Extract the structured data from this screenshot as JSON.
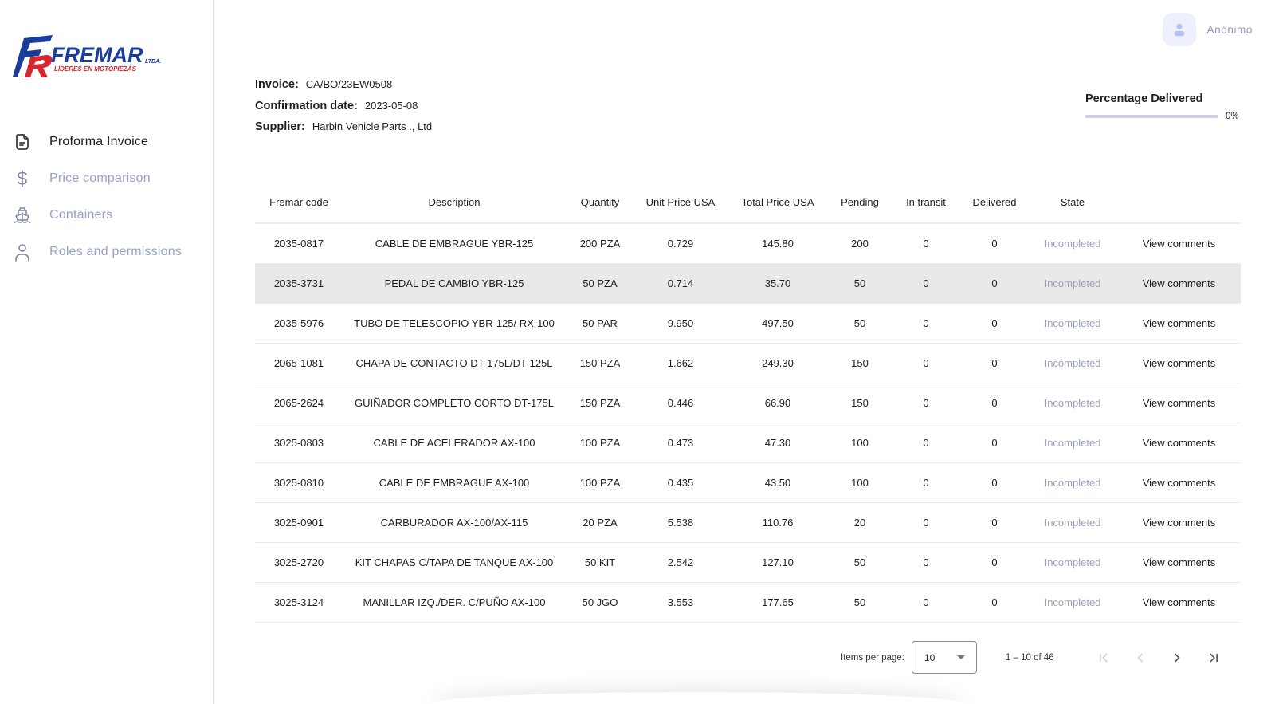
{
  "brand": {
    "name": "FREMAR",
    "suffix": "LTDA.",
    "tagline": "LÍDERES EN MOTOPIEZAS",
    "colors": {
      "blue": "#1a3d9c",
      "red": "#d8262e"
    }
  },
  "sidebar": {
    "items": [
      {
        "label": "Proforma Invoice",
        "icon": "document-icon",
        "active": true
      },
      {
        "label": "Price comparison",
        "icon": "dollar-icon",
        "active": false
      },
      {
        "label": "Containers",
        "icon": "ship-icon",
        "active": false
      },
      {
        "label": "Roles and permissions",
        "icon": "user-icon",
        "active": false
      }
    ]
  },
  "user": {
    "name": "Anónimo",
    "icon": "user-avatar-icon"
  },
  "invoice": {
    "invoice_label": "Invoice:",
    "invoice_value": "CA/BO/23EW0508",
    "date_label": "Confirmation date:",
    "date_value": "2023-05-08",
    "supplier_label": "Supplier:",
    "supplier_value": "Harbin Vehicle Parts ., Ltd"
  },
  "progress": {
    "title": "Percentage Delivered",
    "value": "0%",
    "percent": 0,
    "colors": {
      "track": "#cdd1e6",
      "fill": "#3f51b5"
    }
  },
  "table": {
    "columns": [
      "Fremar code",
      "Description",
      "Quantity",
      "Unit Price USA",
      "Total Price USA",
      "Pending",
      "In transit",
      "Delivered",
      "State",
      ""
    ],
    "rows": [
      {
        "code": "2035-0817",
        "description": "CABLE DE EMBRAGUE YBR-125",
        "quantity": "200 PZA",
        "unit_price": "0.729",
        "total_price": "145.80",
        "pending": "200",
        "in_transit": "0",
        "delivered": "0",
        "state": "Incompleted",
        "action": "View comments"
      },
      {
        "code": "2035-3731",
        "description": "PEDAL DE CAMBIO YBR-125",
        "quantity": "50 PZA",
        "unit_price": "0.714",
        "total_price": "35.70",
        "pending": "50",
        "in_transit": "0",
        "delivered": "0",
        "state": "Incompleted",
        "action": "View comments"
      },
      {
        "code": "2035-5976",
        "description": "TUBO DE TELESCOPIO YBR-125/ RX-100",
        "quantity": "50 PAR",
        "unit_price": "9.950",
        "total_price": "497.50",
        "pending": "50",
        "in_transit": "0",
        "delivered": "0",
        "state": "Incompleted",
        "action": "View comments"
      },
      {
        "code": "2065-1081",
        "description": "CHAPA DE CONTACTO DT-175L/DT-125L",
        "quantity": "150 PZA",
        "unit_price": "1.662",
        "total_price": "249.30",
        "pending": "150",
        "in_transit": "0",
        "delivered": "0",
        "state": "Incompleted",
        "action": "View comments"
      },
      {
        "code": "2065-2624",
        "description": "GUIÑADOR COMPLETO CORTO DT-175L",
        "quantity": "150 PZA",
        "unit_price": "0.446",
        "total_price": "66.90",
        "pending": "150",
        "in_transit": "0",
        "delivered": "0",
        "state": "Incompleted",
        "action": "View comments"
      },
      {
        "code": "3025-0803",
        "description": "CABLE DE ACELERADOR AX-100",
        "quantity": "100 PZA",
        "unit_price": "0.473",
        "total_price": "47.30",
        "pending": "100",
        "in_transit": "0",
        "delivered": "0",
        "state": "Incompleted",
        "action": "View comments"
      },
      {
        "code": "3025-0810",
        "description": "CABLE DE EMBRAGUE AX-100",
        "quantity": "100 PZA",
        "unit_price": "0.435",
        "total_price": "43.50",
        "pending": "100",
        "in_transit": "0",
        "delivered": "0",
        "state": "Incompleted",
        "action": "View comments"
      },
      {
        "code": "3025-0901",
        "description": "CARBURADOR AX-100/AX-115",
        "quantity": "20 PZA",
        "unit_price": "5.538",
        "total_price": "110.76",
        "pending": "20",
        "in_transit": "0",
        "delivered": "0",
        "state": "Incompleted",
        "action": "View comments"
      },
      {
        "code": "3025-2720",
        "description": "KIT CHAPAS C/TAPA DE TANQUE AX-100",
        "quantity": "50 KIT",
        "unit_price": "2.542",
        "total_price": "127.10",
        "pending": "50",
        "in_transit": "0",
        "delivered": "0",
        "state": "Incompleted",
        "action": "View comments"
      },
      {
        "code": "3025-3124",
        "description": "MANILLAR IZQ./DER. C/PUÑO AX-100",
        "quantity": "50 JGO",
        "unit_price": "3.553",
        "total_price": "177.65",
        "pending": "50",
        "in_transit": "0",
        "delivered": "0",
        "state": "Incompleted",
        "action": "View comments"
      }
    ],
    "hovered_row": 1
  },
  "paginator": {
    "items_per_page_label": "Items per page:",
    "items_per_page": "10",
    "range": "1 – 10 of 46",
    "buttons": [
      "first-page",
      "previous-page",
      "next-page",
      "last-page"
    ]
  }
}
